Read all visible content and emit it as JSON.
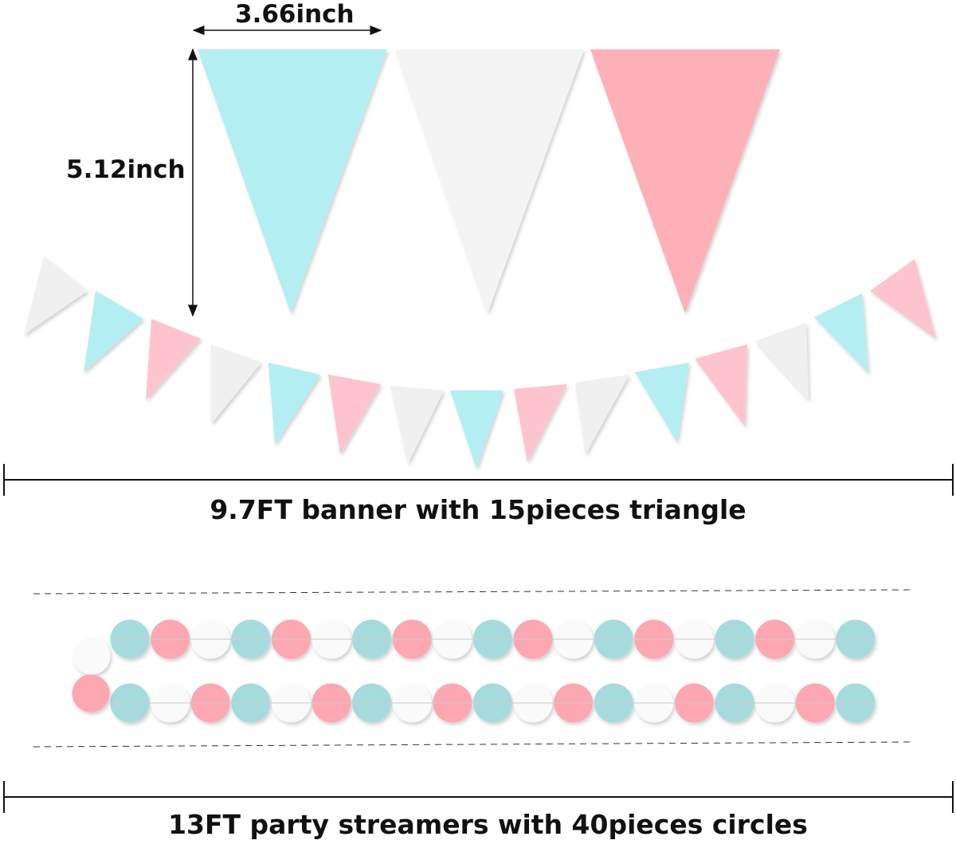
{
  "labels": {
    "width": "3.66inch",
    "height": "5.12inch",
    "banner_caption": "9.7FT banner with 15pieces triangle",
    "streamer_caption": "13FT party streamers with 40pieces circles"
  },
  "colors": {
    "blue": "#b3eef2",
    "white": "#f4f4f4",
    "pink": "#fdb0b8",
    "circle_blue": "#a6dbde",
    "circle_pink": "#fca7b2",
    "circle_white": "#fafafa"
  },
  "large_pennants": [
    "blue",
    "white",
    "pink"
  ],
  "banner_pennants": [
    "white",
    "blue",
    "pink",
    "white",
    "blue",
    "pink",
    "white",
    "blue",
    "pink",
    "white",
    "blue",
    "pink",
    "white",
    "blue",
    "pink"
  ],
  "streamer_row1": [
    "blue",
    "pink",
    "white",
    "blue",
    "pink",
    "white",
    "blue",
    "pink",
    "white",
    "blue",
    "pink",
    "white",
    "blue",
    "pink",
    "white",
    "blue",
    "pink",
    "white",
    "blue"
  ],
  "streamer_row2": [
    "blue",
    "white",
    "pink",
    "blue",
    "white",
    "pink",
    "blue",
    "white",
    "pink",
    "blue",
    "white",
    "pink",
    "blue",
    "white",
    "pink",
    "blue",
    "white",
    "pink",
    "blue"
  ],
  "streamer_link": [
    "white",
    "pink"
  ]
}
